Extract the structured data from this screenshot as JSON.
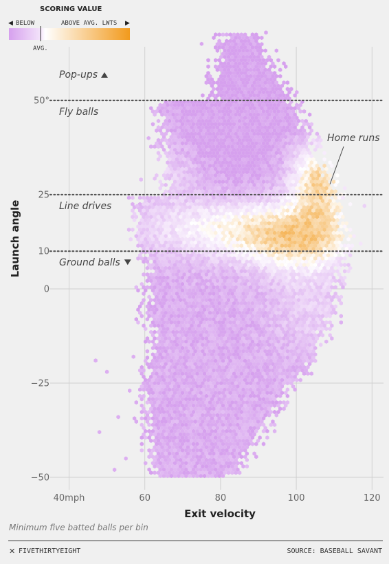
{
  "chart_data": {
    "type": "heatmap",
    "xlabel": "Exit velocity",
    "ylabel": "Launch angle",
    "xlim": [
      35,
      125
    ],
    "ylim": [
      -50,
      75
    ],
    "x_ticks": [
      40,
      60,
      80,
      100,
      120
    ],
    "x_tick_labels": [
      "40mph",
      "60",
      "80",
      "100",
      "120"
    ],
    "y_ticks": [
      -50,
      -25,
      0,
      10,
      25,
      50
    ],
    "y_tick_labels": [
      "−50",
      "−25",
      "0",
      "10",
      "25",
      "50°"
    ],
    "grid": true,
    "legend": {
      "title": "SCORING VALUE",
      "below_label": "BELOW",
      "above_label": "ABOVE AVG. LWTS",
      "avg_label": "AVG.",
      "low_color": "#d6a0ee",
      "mid_color": "#ffffff",
      "high_color": "#f29a1c"
    },
    "zones": [
      {
        "angle": 50,
        "above_label": "Pop-ups",
        "below_label": "Fly balls"
      },
      {
        "angle": 25,
        "below_label": "Line drives"
      },
      {
        "angle": 10,
        "below_label": "Ground balls"
      }
    ],
    "annotation": {
      "text": "Home runs",
      "x": 105,
      "y": 32
    },
    "note": "Minimum five batted balls per bin"
  },
  "footer": {
    "brand": "FIVETHIRTYEIGHT",
    "source": "SOURCE: BASEBALL SAVANT"
  }
}
